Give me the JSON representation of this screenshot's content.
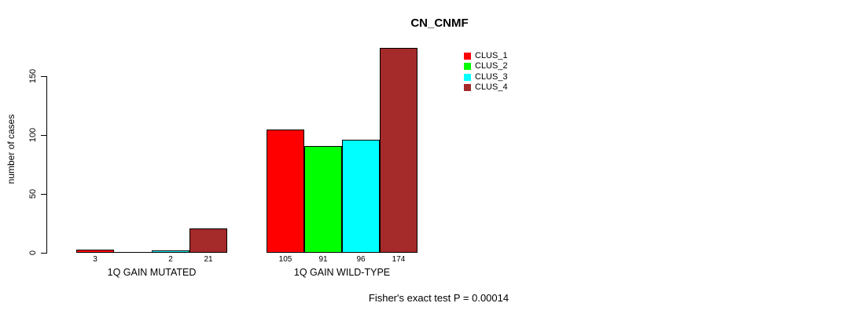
{
  "chart_data": {
    "type": "bar",
    "title": "CN_CNMF",
    "ylabel": "number of cases",
    "note": "Fisher's exact test P = 0.00014",
    "categories": [
      "1Q GAIN MUTATED",
      "1Q GAIN WILD-TYPE"
    ],
    "series": [
      {
        "name": "CLUS_1",
        "color": "#ff0000",
        "values": [
          3,
          105
        ]
      },
      {
        "name": "CLUS_2",
        "color": "#00ff00",
        "values": [
          0,
          91
        ]
      },
      {
        "name": "CLUS_3",
        "color": "#00ffff",
        "values": [
          2,
          96
        ]
      },
      {
        "name": "CLUS_4",
        "color": "#a52a2a",
        "values": [
          21,
          174
        ]
      }
    ],
    "bar_value_labels": [
      [
        "3",
        "",
        "2",
        "21"
      ],
      [
        "105",
        "91",
        "96",
        "174"
      ]
    ],
    "y_ticks": [
      0,
      50,
      100,
      150
    ],
    "ylim": [
      0,
      175
    ],
    "grid": false,
    "legend_position": "top-right"
  }
}
